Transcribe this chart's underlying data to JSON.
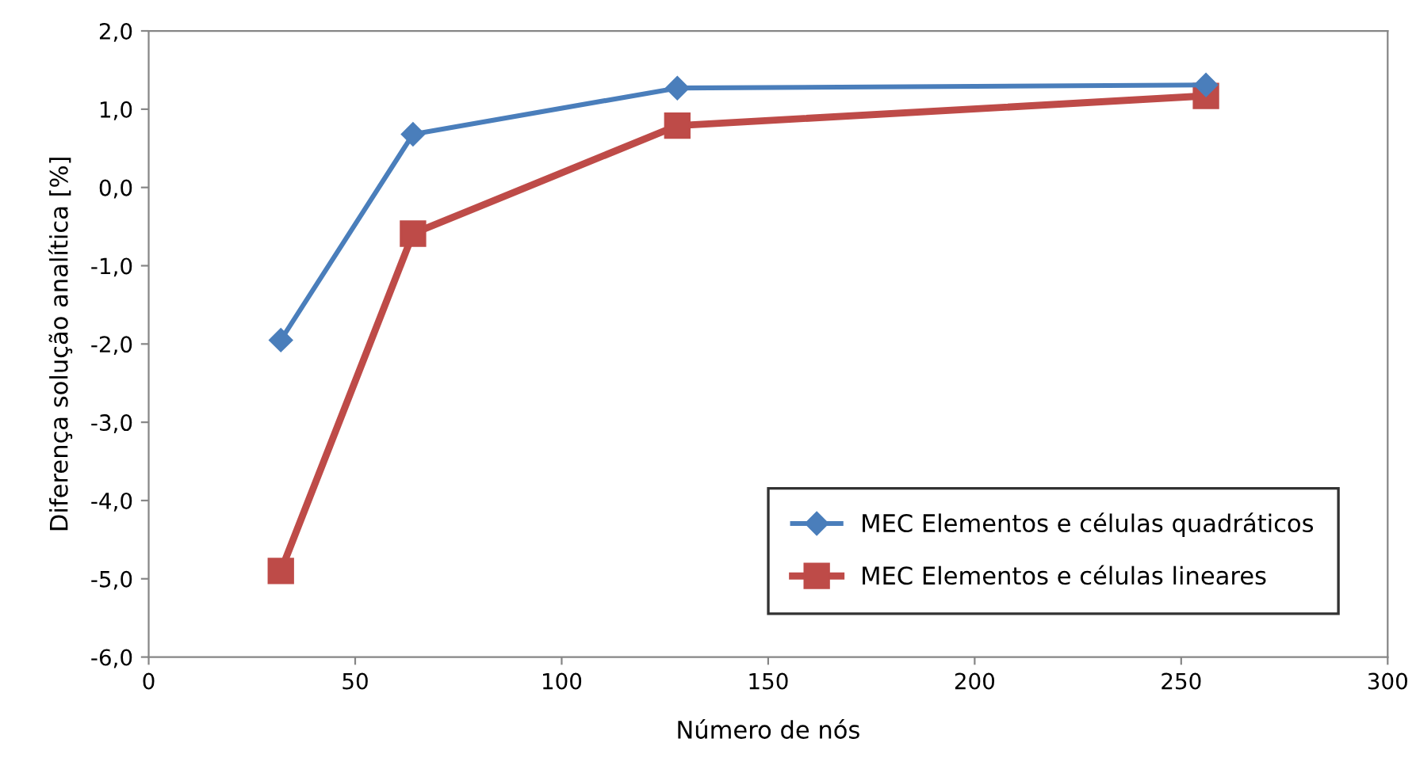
{
  "chart_data": {
    "type": "line",
    "xlabel": "Número de nós",
    "ylabel": "Diferença solução analítica [%]",
    "x": [
      32,
      64,
      128,
      256
    ],
    "series": [
      {
        "name": "MEC Elementos e células quadráticos",
        "color": "#4a7ebb",
        "marker": "diamond",
        "values": [
          -1.95,
          0.68,
          1.27,
          1.31
        ]
      },
      {
        "name": "MEC Elementos e células lineares",
        "color": "#be4b48",
        "marker": "square",
        "values": [
          -4.9,
          -0.59,
          0.79,
          1.17
        ]
      }
    ],
    "xlim": [
      0,
      300
    ],
    "xticks": [
      0,
      50,
      100,
      150,
      200,
      250,
      300
    ],
    "ylim": [
      -6,
      2
    ],
    "yticks": [
      {
        "value": -6,
        "label": "-6,0"
      },
      {
        "value": -5,
        "label": "-5,0"
      },
      {
        "value": -4,
        "label": "-4,0"
      },
      {
        "value": -3,
        "label": "-3,0"
      },
      {
        "value": -2,
        "label": "-2,0"
      },
      {
        "value": -1,
        "label": "-1,0"
      },
      {
        "value": 0,
        "label": "0,0"
      },
      {
        "value": 1,
        "label": "1,0"
      },
      {
        "value": 2,
        "label": "2,0"
      }
    ],
    "grid": false,
    "legend": "bottom right",
    "line_style": "solid"
  }
}
